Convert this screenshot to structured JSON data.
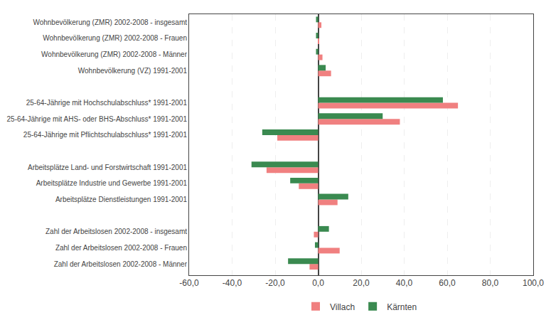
{
  "chart_data": {
    "type": "bar",
    "orientation": "horizontal",
    "categories": [
      "Wohnbevölkerung (ZMR) 2002-2008 - insgesamt",
      "Wohnbevölkerung (ZMR) 2002-2008 - Frauen",
      "Wohnbevölkerung (ZMR) 2002-2008 - Männer",
      "Wohnbevölkerung (VZ) 1991-2001",
      null,
      "25-64-Jährige mit Hochschulabschluss* 1991-2001",
      "25-64-Jährige mit AHS- oder BHS-Abschluss* 1991-2001",
      "25-64-Jährige mit Pflichtschulabschluss* 1991-2001",
      null,
      "Arbeitsplätze Land- und Forstwirtschaft 1991-2001",
      "Arbeitsplätze Industrie und Gewerbe 1991-2001",
      "Arbeitsplätze Dienstleistungen 1991-2001",
      null,
      "Zahl der Arbeitslosen 2002-2008 - insgesamt",
      "Zahl der Arbeitslosen 2002-2008 - Frauen",
      "Zahl der Arbeitslosen 2002-2008 - Männer"
    ],
    "series": [
      {
        "name": "Villach",
        "color": "#f08080",
        "values": [
          1.5,
          0.5,
          2.0,
          6.0,
          null,
          65.0,
          38.0,
          -19.0,
          null,
          -24.0,
          -9.0,
          9.0,
          null,
          -2.0,
          10.0,
          -4.0
        ]
      },
      {
        "name": "Kärnten",
        "color": "#3a8a50",
        "values": [
          -1.0,
          -1.0,
          -1.0,
          3.5,
          null,
          58.0,
          30.0,
          -26.0,
          null,
          -31.0,
          -13.0,
          14.0,
          null,
          5.0,
          -1.5,
          -14.0
        ]
      }
    ],
    "xlim": [
      -60,
      100
    ],
    "xticks": [
      {
        "value": -60,
        "label": "-60,0"
      },
      {
        "value": -40,
        "label": "-40,0"
      },
      {
        "value": -20,
        "label": "-20,0"
      },
      {
        "value": 0,
        "label": "0,0"
      },
      {
        "value": 20,
        "label": "20,0"
      },
      {
        "value": 40,
        "label": "40,0"
      },
      {
        "value": 60,
        "label": "60,0"
      },
      {
        "value": 80,
        "label": "80,0"
      },
      {
        "value": 100,
        "label": "100,0"
      }
    ],
    "grid": true,
    "legend": "bottom"
  }
}
